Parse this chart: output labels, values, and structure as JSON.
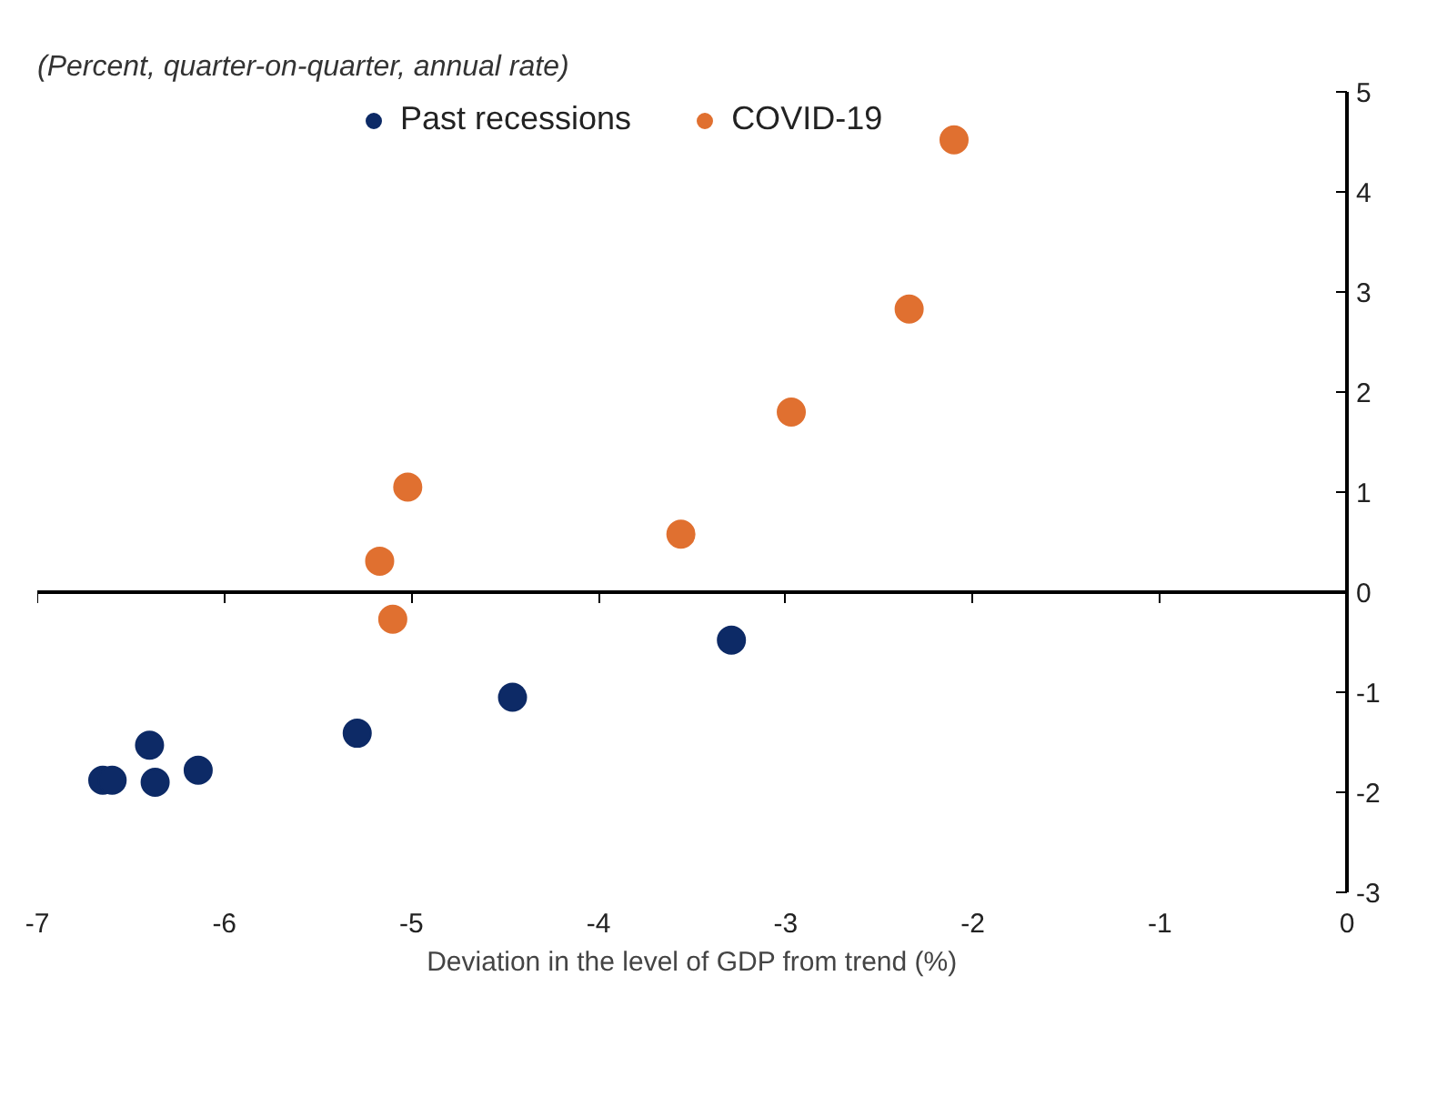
{
  "chart_data": {
    "type": "scatter",
    "ylabel": "(Percent, quarter-on-quarter, annual rate)",
    "xlabel": "Deviation in the level of GDP from trend (%)",
    "xlim": [
      -7,
      0
    ],
    "ylim": [
      -3,
      5
    ],
    "xticks": [
      -7,
      -6,
      -5,
      -4,
      -3,
      -2,
      -1,
      0
    ],
    "yticks": [
      -3,
      -2,
      -1,
      0,
      1,
      2,
      3,
      4,
      5
    ],
    "legend": "top",
    "marker": "circle",
    "series": [
      {
        "name": "Past recessions",
        "color": "#0d2a66",
        "x": [
          -3.29,
          -4.46,
          -5.29,
          -6.14,
          -6.4,
          -6.37,
          -6.65,
          -6.6
        ],
        "values": [
          -0.48,
          -1.05,
          -1.41,
          -1.78,
          -1.53,
          -1.9,
          -1.88,
          -1.88
        ]
      },
      {
        "name": "COVID-19",
        "color": "#e07030",
        "x": [
          -2.1,
          -2.34,
          -2.97,
          -3.56,
          -5.02,
          -5.17,
          -5.1
        ],
        "values": [
          4.52,
          2.83,
          1.8,
          0.58,
          1.05,
          0.31,
          -0.27
        ]
      }
    ]
  }
}
